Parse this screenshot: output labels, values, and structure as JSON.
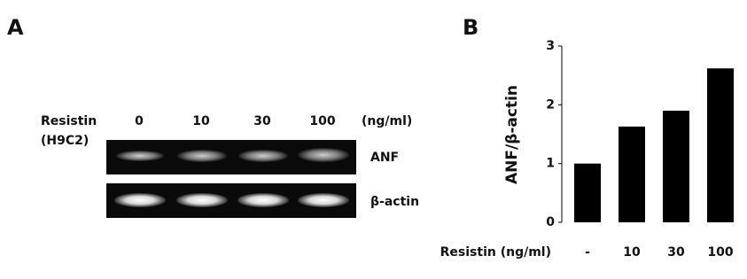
{
  "panel_a": {
    "label": "A",
    "row_label": "Resistin",
    "cell_label": "(H9C2)",
    "lanes": [
      "0",
      "10",
      "30",
      "100"
    ],
    "unit": "(ng/ml)",
    "bands": [
      "ANF",
      "β-actin"
    ]
  },
  "chart_data": {
    "type": "bar",
    "panel_label": "B",
    "y_label": "ANF/β-actin",
    "x_label": "Resistin (ng/ml)",
    "categories": [
      "-",
      "10",
      "30",
      "100"
    ],
    "values": [
      1.0,
      1.63,
      1.9,
      2.62
    ],
    "color": "#000000",
    "ylim": [
      0,
      3
    ],
    "yticks": [
      0,
      1,
      2,
      3
    ],
    "grid": false
  }
}
